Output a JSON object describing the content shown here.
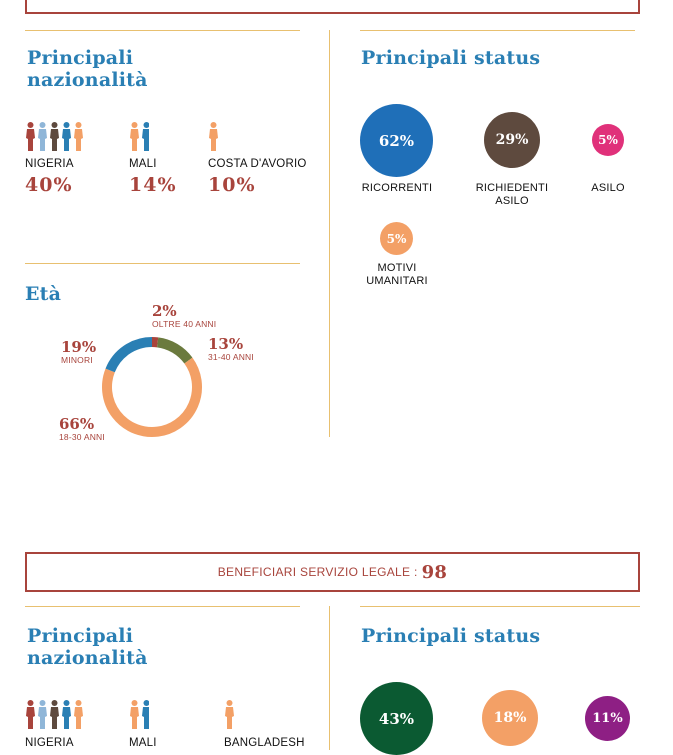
{
  "section1": {
    "nationality": {
      "title": "Principali nazionalità",
      "items": [
        {
          "country": "NIGERIA",
          "pct": "40%"
        },
        {
          "country": "MALI",
          "pct": "14%"
        },
        {
          "country": "COSTA D'AVORIO",
          "pct": "10%"
        }
      ]
    },
    "status": {
      "title": "Principali status",
      "items": [
        {
          "pct": "62%",
          "label": "RICORRENTI",
          "color": "#1f6fb8"
        },
        {
          "pct": "29%",
          "label": "RICHIEDENTI ASILO",
          "color": "#5e4a3e"
        },
        {
          "pct": "5%",
          "label": "ASILO",
          "color": "#e0317a"
        },
        {
          "pct": "5%",
          "label": "MOTIVI UMANITARI",
          "color": "#f3a066"
        }
      ]
    },
    "age": {
      "title": "Età",
      "chart_data": {
        "type": "pie",
        "slices": [
          {
            "label": "OLTRE 40 ANNI",
            "value": 2,
            "pct": "2%",
            "color": "#a8443c"
          },
          {
            "label": "31-40 ANNI",
            "value": 13,
            "pct": "13%",
            "color": "#6b7a3e"
          },
          {
            "label": "18-30 ANNI",
            "value": 66,
            "pct": "66%",
            "color": "#f3a066"
          },
          {
            "label": "MINORI",
            "value": 19,
            "pct": "19%",
            "color": "#2a7fb4"
          }
        ]
      }
    }
  },
  "legal_banner": {
    "label": "BENEFICIARI SERVIZIO LEGALE :",
    "value": "98"
  },
  "section2": {
    "nationality": {
      "title": "Principali nazionalità",
      "items": [
        {
          "country": "NIGERIA"
        },
        {
          "country": "MALI"
        },
        {
          "country": "BANGLADESH"
        }
      ]
    },
    "status": {
      "title": "Principali status",
      "items": [
        {
          "pct": "43%",
          "color": "#0b5a32"
        },
        {
          "pct": "18%",
          "color": "#f3a066"
        },
        {
          "pct": "11%",
          "color": "#8e1f84"
        }
      ]
    }
  },
  "colors": {
    "people": [
      "#a8443c",
      "#8fb6d8",
      "#5e4a3e",
      "#2a7fb4",
      "#f3a066"
    ]
  }
}
